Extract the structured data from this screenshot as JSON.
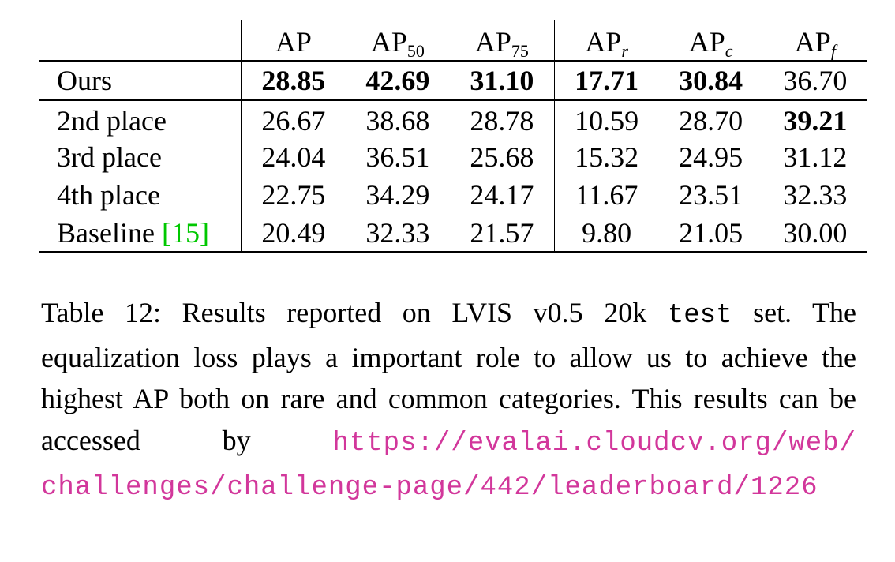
{
  "table": {
    "headers": [
      {
        "base": "AP",
        "sub": ""
      },
      {
        "base": "AP",
        "sub": "50"
      },
      {
        "base": "AP",
        "sub": "75"
      },
      {
        "base": "AP",
        "sub": "r"
      },
      {
        "base": "AP",
        "sub": "c"
      },
      {
        "base": "AP",
        "sub": "f"
      }
    ],
    "rows": [
      {
        "name": "Ours",
        "values": [
          "28.85",
          "42.69",
          "31.10",
          "17.71",
          "30.84",
          "36.70"
        ]
      },
      {
        "name": "2nd place",
        "values": [
          "26.67",
          "38.68",
          "28.78",
          "10.59",
          "28.70",
          "39.21"
        ]
      },
      {
        "name": "3rd place",
        "values": [
          "24.04",
          "36.51",
          "25.68",
          "15.32",
          "24.95",
          "31.12"
        ]
      },
      {
        "name": "4th place",
        "values": [
          "22.75",
          "34.29",
          "24.17",
          "11.67",
          "23.51",
          "32.33"
        ]
      },
      {
        "name": "Baseline ",
        "cite": "[15]",
        "values": [
          "20.49",
          "32.33",
          "21.57",
          "9.80",
          "21.05",
          "30.00"
        ]
      }
    ]
  },
  "caption": {
    "label": "Table 12:",
    "text_before": " Results reported on LVIS v0.5 20k ",
    "mono_word": "test",
    "text_after": " set. The equalization loss plays a important role to allow us to achieve the highest AP both on rare and common categories. This results can be accessed by ",
    "url": "https://evalai.cloudcv.org/web/challenges/challenge-page/442/leaderboard/1226"
  },
  "colors": {
    "citation": "#00c800",
    "url": "#d2379b"
  }
}
